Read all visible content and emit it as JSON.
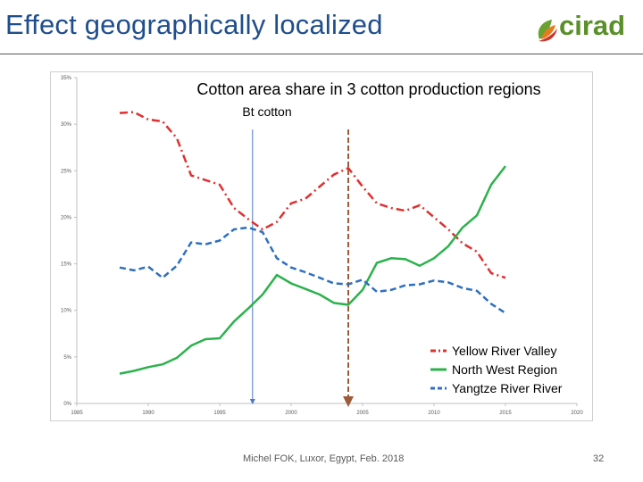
{
  "slide": {
    "title": "Effect geographically localized",
    "logo_text": "cirad",
    "footer": "Michel FOK, Luxor, Egypt, Feb. 2018",
    "page_number": "32"
  },
  "chart_data": {
    "type": "line",
    "title": "Cotton area share in 3 cotton production regions",
    "xlim": [
      1985,
      2020
    ],
    "ylim": [
      0,
      35
    ],
    "x_ticks": [
      "1985",
      "1990",
      "1995",
      "2000",
      "2005",
      "2010",
      "2015",
      "2020"
    ],
    "y_ticks": [
      "0%",
      "5%",
      "10%",
      "15%",
      "20%",
      "25%",
      "30%",
      "35%"
    ],
    "legend_position": "bottom-right",
    "annotation": {
      "text": "Bt cotton",
      "x": 2000
    },
    "markers": [
      {
        "x": 1997.3,
        "color": "#4a78c4",
        "style": "solid"
      },
      {
        "x": 2004,
        "color": "#9c5a38",
        "style": "dashed"
      }
    ],
    "series": [
      {
        "name": "Yellow River Valley",
        "color": "#e03030",
        "dash": "dashdot",
        "x": [
          1988,
          1989,
          1990,
          1991,
          1992,
          1993,
          1994,
          1995,
          1996,
          1997,
          1998,
          1999,
          2000,
          2001,
          2002,
          2003,
          2004,
          2005,
          2006,
          2007,
          2008,
          2009,
          2010,
          2011,
          2012,
          2013,
          2014,
          2015
        ],
        "values": [
          31.2,
          31.3,
          30.5,
          30.3,
          28.5,
          24.5,
          24.0,
          23.5,
          21.0,
          19.8,
          18.7,
          19.5,
          21.5,
          22.0,
          23.3,
          24.6,
          25.3,
          23.3,
          21.5,
          21.0,
          20.7,
          21.3,
          20.0,
          18.7,
          17.2,
          16.3,
          14.0,
          13.5
        ]
      },
      {
        "name": "North West Region",
        "color": "#2bb24c",
        "dash": "solid",
        "x": [
          1988,
          1989,
          1990,
          1991,
          1992,
          1993,
          1994,
          1995,
          1996,
          1997,
          1998,
          1999,
          2000,
          2001,
          2002,
          2003,
          2004,
          2005,
          2006,
          2007,
          2008,
          2009,
          2010,
          2011,
          2012,
          2013,
          2014,
          2015
        ],
        "values": [
          3.2,
          3.5,
          3.9,
          4.2,
          4.9,
          6.2,
          6.9,
          7.0,
          8.8,
          10.2,
          11.7,
          13.8,
          12.9,
          12.3,
          11.7,
          10.8,
          10.6,
          12.2,
          15.1,
          15.6,
          15.5,
          14.8,
          15.6,
          16.9,
          18.9,
          20.2,
          23.5,
          25.5
        ]
      },
      {
        "name": "Yangtze River River",
        "color": "#2e6fbf",
        "dash": "dashed",
        "x": [
          1988,
          1989,
          1990,
          1991,
          1992,
          1993,
          1994,
          1995,
          1996,
          1997,
          1998,
          1999,
          2000,
          2001,
          2002,
          2003,
          2004,
          2005,
          2006,
          2007,
          2008,
          2009,
          2010,
          2011,
          2012,
          2013,
          2014,
          2015
        ],
        "values": [
          14.6,
          14.3,
          14.7,
          13.5,
          14.8,
          17.3,
          17.1,
          17.5,
          18.7,
          18.9,
          18.4,
          15.6,
          14.6,
          14.1,
          13.5,
          12.9,
          12.8,
          13.3,
          12.0,
          12.2,
          12.7,
          12.8,
          13.2,
          13.0,
          12.4,
          12.1,
          10.7,
          9.7
        ]
      }
    ]
  }
}
